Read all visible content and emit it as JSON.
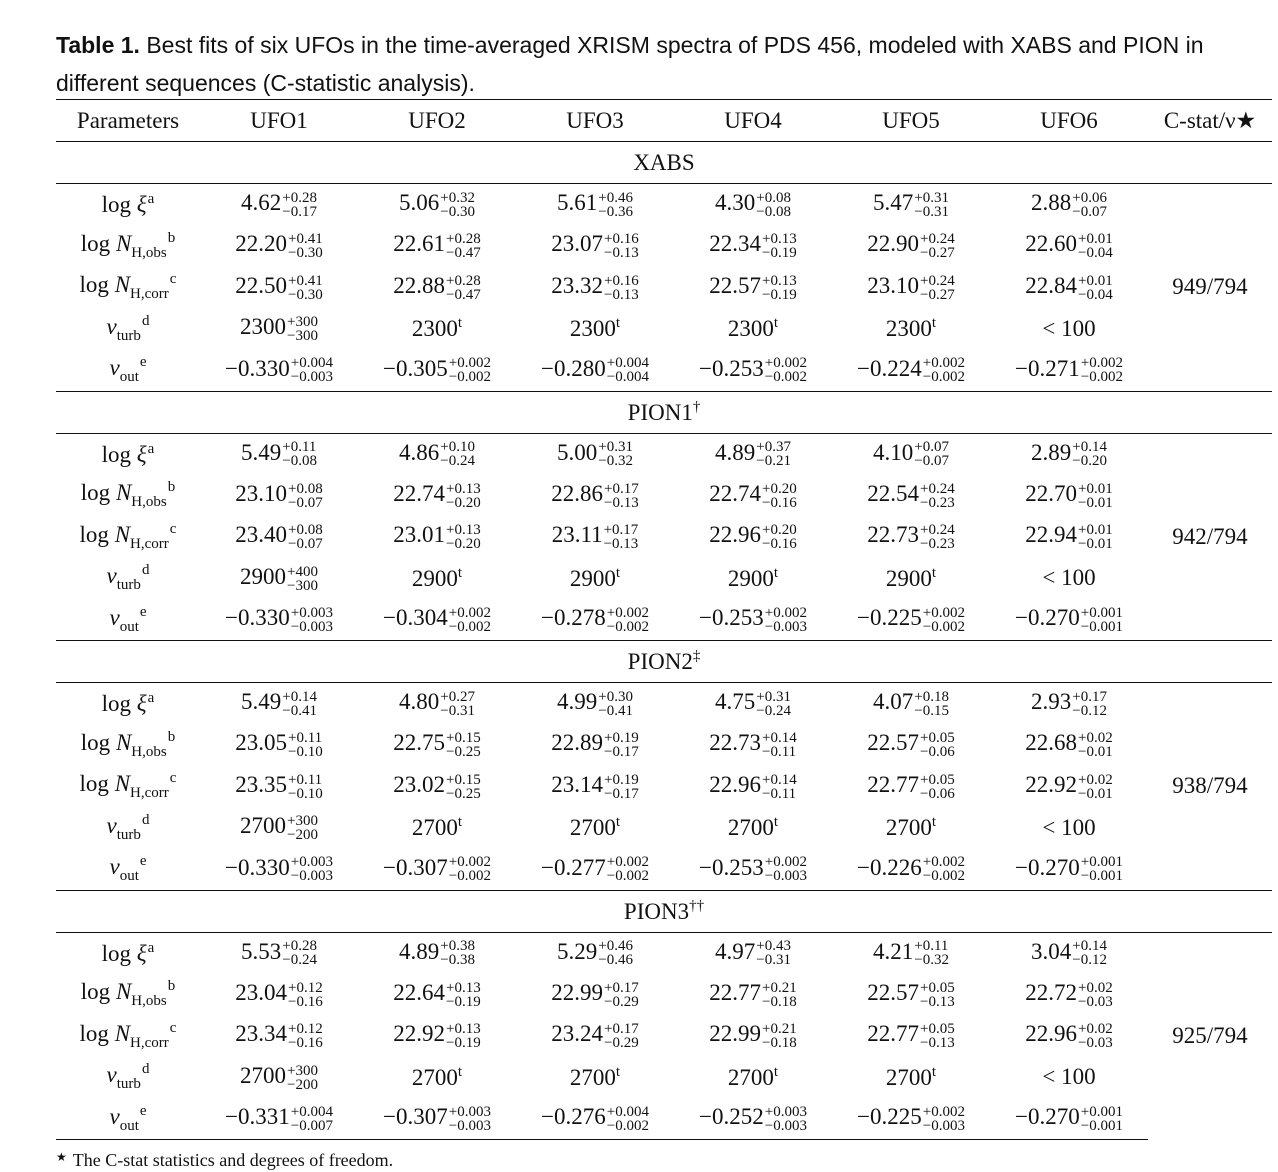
{
  "caption": {
    "label": "Table 1.",
    "text": "Best fits of six UFOs in the time-averaged XRISM spectra of PDS 456, modeled with XABS and PION in different sequences (C-statistic analysis)."
  },
  "headers": [
    "Parameters",
    "UFO1",
    "UFO2",
    "UFO3",
    "UFO4",
    "UFO5",
    "UFO6",
    "C-stat/ν★"
  ],
  "param_labels": [
    {
      "base": "log ",
      "sym": "ξ",
      "sub": "",
      "sup": "a"
    },
    {
      "base": "log ",
      "sym": "N",
      "sub": "H,obs",
      "sup": "b"
    },
    {
      "base": "log ",
      "sym": "N",
      "sub": "H,corr",
      "sup": "c"
    },
    {
      "base": "",
      "sym": "v",
      "sub": "turb",
      "sup": "d"
    },
    {
      "base": "",
      "sym": "v",
      "sub": "out",
      "sup": "e"
    }
  ],
  "sections": [
    {
      "title": "XABS",
      "title_mark": "",
      "cstat": "949/794",
      "rows": [
        [
          {
            "v": "4.62",
            "p": "+0.28",
            "m": "−0.17"
          },
          {
            "v": "5.06",
            "p": "+0.32",
            "m": "−0.30"
          },
          {
            "v": "5.61",
            "p": "+0.46",
            "m": "−0.36"
          },
          {
            "v": "4.30",
            "p": "+0.08",
            "m": "−0.08"
          },
          {
            "v": "5.47",
            "p": "+0.31",
            "m": "−0.31"
          },
          {
            "v": "2.88",
            "p": "+0.06",
            "m": "−0.07"
          }
        ],
        [
          {
            "v": "22.20",
            "p": "+0.41",
            "m": "−0.30"
          },
          {
            "v": "22.61",
            "p": "+0.28",
            "m": "−0.47"
          },
          {
            "v": "23.07",
            "p": "+0.16",
            "m": "−0.13"
          },
          {
            "v": "22.34",
            "p": "+0.13",
            "m": "−0.19"
          },
          {
            "v": "22.90",
            "p": "+0.24",
            "m": "−0.27"
          },
          {
            "v": "22.60",
            "p": "+0.01",
            "m": "−0.04"
          }
        ],
        [
          {
            "v": "22.50",
            "p": "+0.41",
            "m": "−0.30"
          },
          {
            "v": "22.88",
            "p": "+0.28",
            "m": "−0.47"
          },
          {
            "v": "23.32",
            "p": "+0.16",
            "m": "−0.13"
          },
          {
            "v": "22.57",
            "p": "+0.13",
            "m": "−0.19"
          },
          {
            "v": "23.10",
            "p": "+0.24",
            "m": "−0.27"
          },
          {
            "v": "22.84",
            "p": "+0.01",
            "m": "−0.04"
          }
        ],
        [
          {
            "v": "2300",
            "p": "+300",
            "m": "−300"
          },
          {
            "v": "2300",
            "t": "t"
          },
          {
            "v": "2300",
            "t": "t"
          },
          {
            "v": "2300",
            "t": "t"
          },
          {
            "v": "2300",
            "t": "t"
          },
          {
            "v": "< 100"
          }
        ],
        [
          {
            "v": "−0.330",
            "p": "+0.004",
            "m": "−0.003"
          },
          {
            "v": "−0.305",
            "p": "+0.002",
            "m": "−0.002"
          },
          {
            "v": "−0.280",
            "p": "+0.004",
            "m": "−0.004"
          },
          {
            "v": "−0.253",
            "p": "+0.002",
            "m": "−0.002"
          },
          {
            "v": "−0.224",
            "p": "+0.002",
            "m": "−0.002"
          },
          {
            "v": "−0.271",
            "p": "+0.002",
            "m": "−0.002"
          }
        ]
      ]
    },
    {
      "title": "PION1",
      "title_mark": "†",
      "cstat": "942/794",
      "rows": [
        [
          {
            "v": "5.49",
            "p": "+0.11",
            "m": "−0.08"
          },
          {
            "v": "4.86",
            "p": "+0.10",
            "m": "−0.24"
          },
          {
            "v": "5.00",
            "p": "+0.31",
            "m": "−0.32"
          },
          {
            "v": "4.89",
            "p": "+0.37",
            "m": "−0.21"
          },
          {
            "v": "4.10",
            "p": "+0.07",
            "m": "−0.07"
          },
          {
            "v": "2.89",
            "p": "+0.14",
            "m": "−0.20"
          }
        ],
        [
          {
            "v": "23.10",
            "p": "+0.08",
            "m": "−0.07"
          },
          {
            "v": "22.74",
            "p": "+0.13",
            "m": "−0.20"
          },
          {
            "v": "22.86",
            "p": "+0.17",
            "m": "−0.13"
          },
          {
            "v": "22.74",
            "p": "+0.20",
            "m": "−0.16"
          },
          {
            "v": "22.54",
            "p": "+0.24",
            "m": "−0.23"
          },
          {
            "v": "22.70",
            "p": "+0.01",
            "m": "−0.01"
          }
        ],
        [
          {
            "v": "23.40",
            "p": "+0.08",
            "m": "−0.07"
          },
          {
            "v": "23.01",
            "p": "+0.13",
            "m": "−0.20"
          },
          {
            "v": "23.11",
            "p": "+0.17",
            "m": "−0.13"
          },
          {
            "v": "22.96",
            "p": "+0.20",
            "m": "−0.16"
          },
          {
            "v": "22.73",
            "p": "+0.24",
            "m": "−0.23"
          },
          {
            "v": "22.94",
            "p": "+0.01",
            "m": "−0.01"
          }
        ],
        [
          {
            "v": "2900",
            "p": "+400",
            "m": "−300"
          },
          {
            "v": "2900",
            "t": "t"
          },
          {
            "v": "2900",
            "t": "t"
          },
          {
            "v": "2900",
            "t": "t"
          },
          {
            "v": "2900",
            "t": "t"
          },
          {
            "v": "< 100"
          }
        ],
        [
          {
            "v": "−0.330",
            "p": "+0.003",
            "m": "−0.003"
          },
          {
            "v": "−0.304",
            "p": "+0.002",
            "m": "−0.002"
          },
          {
            "v": "−0.278",
            "p": "+0.002",
            "m": "−0.002"
          },
          {
            "v": "−0.253",
            "p": "+0.002",
            "m": "−0.003"
          },
          {
            "v": "−0.225",
            "p": "+0.002",
            "m": "−0.002"
          },
          {
            "v": "−0.270",
            "p": "+0.001",
            "m": "−0.001"
          }
        ]
      ]
    },
    {
      "title": "PION2",
      "title_mark": "‡",
      "cstat": "938/794",
      "rows": [
        [
          {
            "v": "5.49",
            "p": "+0.14",
            "m": "−0.41"
          },
          {
            "v": "4.80",
            "p": "+0.27",
            "m": "−0.31"
          },
          {
            "v": "4.99",
            "p": "+0.30",
            "m": "−0.41"
          },
          {
            "v": "4.75",
            "p": "+0.31",
            "m": "−0.24"
          },
          {
            "v": "4.07",
            "p": "+0.18",
            "m": "−0.15"
          },
          {
            "v": "2.93",
            "p": "+0.17",
            "m": "−0.12"
          }
        ],
        [
          {
            "v": "23.05",
            "p": "+0.11",
            "m": "−0.10"
          },
          {
            "v": "22.75",
            "p": "+0.15",
            "m": "−0.25"
          },
          {
            "v": "22.89",
            "p": "+0.19",
            "m": "−0.17"
          },
          {
            "v": "22.73",
            "p": "+0.14",
            "m": "−0.11"
          },
          {
            "v": "22.57",
            "p": "+0.05",
            "m": "−0.06"
          },
          {
            "v": "22.68",
            "p": "+0.02",
            "m": "−0.01"
          }
        ],
        [
          {
            "v": "23.35",
            "p": "+0.11",
            "m": "−0.10"
          },
          {
            "v": "23.02",
            "p": "+0.15",
            "m": "−0.25"
          },
          {
            "v": "23.14",
            "p": "+0.19",
            "m": "−0.17"
          },
          {
            "v": "22.96",
            "p": "+0.14",
            "m": "−0.11"
          },
          {
            "v": "22.77",
            "p": "+0.05",
            "m": "−0.06"
          },
          {
            "v": "22.92",
            "p": "+0.02",
            "m": "−0.01"
          }
        ],
        [
          {
            "v": "2700",
            "p": "+300",
            "m": "−200"
          },
          {
            "v": "2700",
            "t": "t"
          },
          {
            "v": "2700",
            "t": "t"
          },
          {
            "v": "2700",
            "t": "t"
          },
          {
            "v": "2700",
            "t": "t"
          },
          {
            "v": "< 100"
          }
        ],
        [
          {
            "v": "−0.330",
            "p": "+0.003",
            "m": "−0.003"
          },
          {
            "v": "−0.307",
            "p": "+0.002",
            "m": "−0.002"
          },
          {
            "v": "−0.277",
            "p": "+0.002",
            "m": "−0.002"
          },
          {
            "v": "−0.253",
            "p": "+0.002",
            "m": "−0.003"
          },
          {
            "v": "−0.226",
            "p": "+0.002",
            "m": "−0.002"
          },
          {
            "v": "−0.270",
            "p": "+0.001",
            "m": "−0.001"
          }
        ]
      ]
    },
    {
      "title": "PION3",
      "title_mark": "††",
      "cstat": "925/794",
      "rows": [
        [
          {
            "v": "5.53",
            "p": "+0.28",
            "m": "−0.24"
          },
          {
            "v": "4.89",
            "p": "+0.38",
            "m": "−0.38"
          },
          {
            "v": "5.29",
            "p": "+0.46",
            "m": "−0.46"
          },
          {
            "v": "4.97",
            "p": "+0.43",
            "m": "−0.31"
          },
          {
            "v": "4.21",
            "p": "+0.11",
            "m": "−0.32"
          },
          {
            "v": "3.04",
            "p": "+0.14",
            "m": "−0.12"
          }
        ],
        [
          {
            "v": "23.04",
            "p": "+0.12",
            "m": "−0.16"
          },
          {
            "v": "22.64",
            "p": "+0.13",
            "m": "−0.19"
          },
          {
            "v": "22.99",
            "p": "+0.17",
            "m": "−0.29"
          },
          {
            "v": "22.77",
            "p": "+0.21",
            "m": "−0.18"
          },
          {
            "v": "22.57",
            "p": "+0.05",
            "m": "−0.13"
          },
          {
            "v": "22.72",
            "p": "+0.02",
            "m": "−0.03"
          }
        ],
        [
          {
            "v": "23.34",
            "p": "+0.12",
            "m": "−0.16"
          },
          {
            "v": "22.92",
            "p": "+0.13",
            "m": "−0.19"
          },
          {
            "v": "23.24",
            "p": "+0.17",
            "m": "−0.29"
          },
          {
            "v": "22.99",
            "p": "+0.21",
            "m": "−0.18"
          },
          {
            "v": "22.77",
            "p": "+0.05",
            "m": "−0.13"
          },
          {
            "v": "22.96",
            "p": "+0.02",
            "m": "−0.03"
          }
        ],
        [
          {
            "v": "2700",
            "p": "+300",
            "m": "−200"
          },
          {
            "v": "2700",
            "t": "t"
          },
          {
            "v": "2700",
            "t": "t"
          },
          {
            "v": "2700",
            "t": "t"
          },
          {
            "v": "2700",
            "t": "t"
          },
          {
            "v": "< 100"
          }
        ],
        [
          {
            "v": "−0.331",
            "p": "+0.004",
            "m": "−0.007"
          },
          {
            "v": "−0.307",
            "p": "+0.003",
            "m": "−0.003"
          },
          {
            "v": "−0.276",
            "p": "+0.004",
            "m": "−0.002"
          },
          {
            "v": "−0.252",
            "p": "+0.003",
            "m": "−0.003"
          },
          {
            "v": "−0.225",
            "p": "+0.002",
            "m": "−0.003"
          },
          {
            "v": "−0.270",
            "p": "+0.001",
            "m": "−0.001"
          }
        ]
      ]
    }
  ],
  "footnote": {
    "mark": "★",
    "text": "The C-stat statistics and degrees of freedom."
  }
}
